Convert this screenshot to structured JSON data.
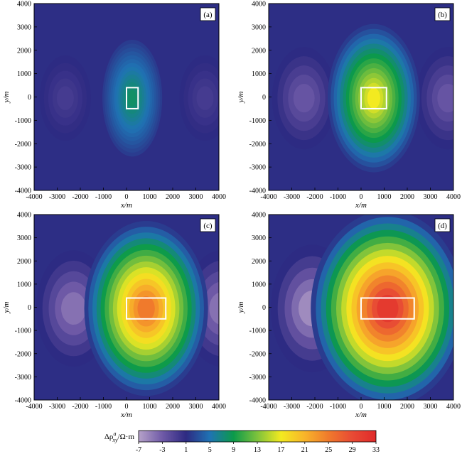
{
  "chart_data": [
    {
      "type": "heatmap",
      "panel_label": "(a)",
      "xlabel": "x/m",
      "ylabel": "y/m",
      "xlim": [
        -4000,
        4000
      ],
      "ylim": [
        -4000,
        4000
      ],
      "xticks": [
        "-4000",
        "-3000",
        "-2000",
        "-1000",
        "0",
        "1000",
        "2000",
        "3000",
        "4000"
      ],
      "yticks": [
        "4000",
        "3000",
        "2000",
        "1000",
        "0",
        "-1000",
        "-2000",
        "-3000",
        "-4000"
      ],
      "anomaly_rect": {
        "x": [
          0,
          500
        ],
        "y": [
          -500,
          400
        ]
      },
      "peak_value": 8
    },
    {
      "type": "heatmap",
      "panel_label": "(b)",
      "xlabel": "x/m",
      "ylabel": "y/m",
      "xlim": [
        -4000,
        4000
      ],
      "ylim": [
        -4000,
        4000
      ],
      "xticks": [
        "-4000",
        "-3000",
        "-2000",
        "-1000",
        "0",
        "1000",
        "2000",
        "3000",
        "4000"
      ],
      "yticks": [
        "4000",
        "3000",
        "2000",
        "1000",
        "0",
        "-1000",
        "-2000",
        "-3000",
        "-4000"
      ],
      "anomaly_rect": {
        "x": [
          0,
          1100
        ],
        "y": [
          -500,
          400
        ]
      },
      "peak_value": 17
    },
    {
      "type": "heatmap",
      "panel_label": "(c)",
      "xlabel": "x/m",
      "ylabel": "y/m",
      "xlim": [
        -4000,
        4000
      ],
      "ylim": [
        -4000,
        4000
      ],
      "xticks": [
        "-4000",
        "-3000",
        "-2000",
        "-1000",
        "0",
        "1000",
        "2000",
        "3000",
        "4000"
      ],
      "yticks": [
        "4000",
        "3000",
        "2000",
        "1000",
        "0",
        "-1000",
        "-2000",
        "-3000",
        "-4000"
      ],
      "anomaly_rect": {
        "x": [
          0,
          1700
        ],
        "y": [
          -500,
          400
        ]
      },
      "peak_value": 25
    },
    {
      "type": "heatmap",
      "panel_label": "(d)",
      "xlabel": "x/m",
      "ylabel": "y/m",
      "xlim": [
        -4000,
        4000
      ],
      "ylim": [
        -4000,
        4000
      ],
      "xticks": [
        "-4000",
        "-3000",
        "-2000",
        "-1000",
        "0",
        "1000",
        "2000",
        "3000",
        "4000"
      ],
      "yticks": [
        "4000",
        "3000",
        "2000",
        "1000",
        "0",
        "-1000",
        "-2000",
        "-3000",
        "-4000"
      ],
      "anomaly_rect": {
        "x": [
          0,
          2300
        ],
        "y": [
          -500,
          400
        ]
      },
      "peak_value": 31
    }
  ],
  "colorbar": {
    "label_prefix": "Δρ",
    "label_sup": "a",
    "label_sub": "xy",
    "label_suffix": "/Ω·m",
    "min": -7,
    "max": 33,
    "ticks": [
      "-7",
      "-3",
      "1",
      "5",
      "9",
      "13",
      "17",
      "21",
      "25",
      "29",
      "33"
    ],
    "stops": [
      {
        "v": -7,
        "color": "#b6a2c9"
      },
      {
        "v": -3,
        "color": "#6f5aa7"
      },
      {
        "v": 1,
        "color": "#2e2a82"
      },
      {
        "v": 5,
        "color": "#1f73b4"
      },
      {
        "v": 9,
        "color": "#0c9a4a"
      },
      {
        "v": 13,
        "color": "#7dc23c"
      },
      {
        "v": 17,
        "color": "#f3ea20"
      },
      {
        "v": 21,
        "color": "#f8b42a"
      },
      {
        "v": 25,
        "color": "#f07a2c"
      },
      {
        "v": 29,
        "color": "#e84a34"
      },
      {
        "v": 33,
        "color": "#e02a2a"
      }
    ]
  }
}
